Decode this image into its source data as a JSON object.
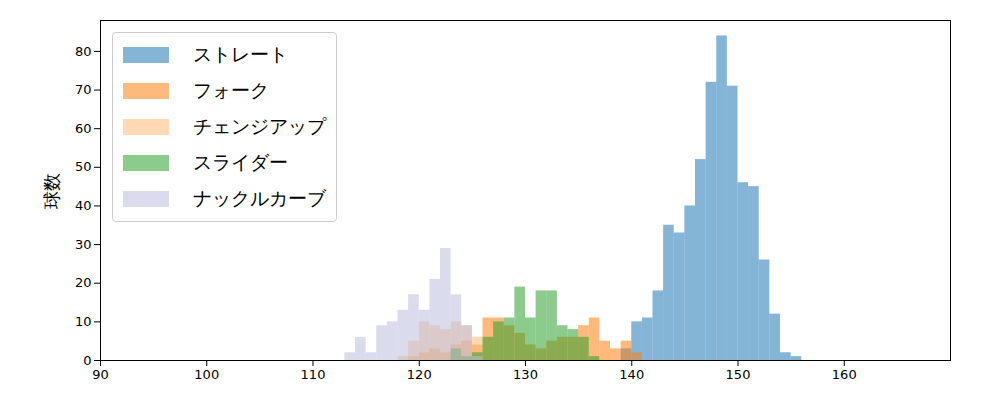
{
  "chart_data": {
    "type": "histogram",
    "y_label": "球数",
    "xlim": [
      90,
      170
    ],
    "xticks": [
      90,
      100,
      110,
      120,
      130,
      140,
      150,
      160
    ],
    "ylim": [
      0,
      88
    ],
    "yticks": [
      0,
      10,
      20,
      30,
      40,
      50,
      60,
      70,
      80
    ],
    "grid": false,
    "legend": "upper left",
    "series": [
      {
        "name": "ストレート",
        "color": "#1f77b4",
        "bins": [
          139,
          140,
          141,
          142,
          143,
          144,
          145,
          146,
          147,
          148,
          149,
          150,
          151,
          152,
          153,
          154,
          155,
          156
        ],
        "values": [
          3,
          10,
          11,
          18,
          35,
          33,
          40,
          52,
          72,
          84,
          71,
          46,
          45,
          26,
          12,
          2,
          1
        ]
      },
      {
        "name": "フォーク",
        "color": "#ff7f0e",
        "bins": [
          119,
          120,
          121,
          122,
          123,
          124,
          125,
          126,
          127,
          128,
          129,
          130,
          131,
          132,
          133,
          134,
          135,
          136,
          137,
          138,
          139,
          140,
          141
        ],
        "values": [
          1,
          2,
          3,
          2,
          4,
          5,
          4,
          11,
          11,
          9,
          7,
          4,
          3,
          5,
          6,
          6,
          9,
          11,
          5,
          3,
          5,
          2
        ]
      },
      {
        "name": "チェンジアップ",
        "color": "#ffbb78",
        "bins": [
          118,
          119,
          120,
          121,
          122,
          123,
          124,
          125,
          126,
          127
        ],
        "values": [
          1,
          5,
          10,
          9,
          8,
          10,
          9,
          6,
          3
        ]
      },
      {
        "name": "スライダー",
        "color": "#2ca02c",
        "bins": [
          123,
          124,
          125,
          126,
          127,
          128,
          129,
          130,
          131,
          132,
          133,
          134,
          135,
          136,
          137
        ],
        "values": [
          3,
          1,
          2,
          6,
          10,
          11,
          19,
          11,
          18,
          18,
          9,
          8,
          6,
          1
        ]
      },
      {
        "name": "ナックルカーブ",
        "color": "#bcbddc",
        "bins": [
          113,
          114,
          115,
          116,
          117,
          118,
          119,
          120,
          121,
          122,
          123,
          124,
          125,
          126
        ],
        "values": [
          2,
          6,
          2,
          9,
          10,
          13,
          17,
          13,
          21,
          29,
          17,
          9,
          1
        ]
      }
    ]
  }
}
